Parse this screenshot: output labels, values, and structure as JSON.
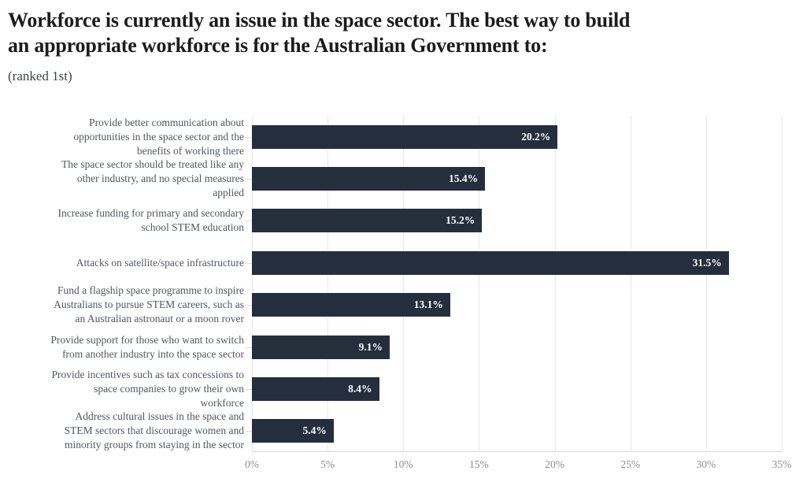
{
  "header": {
    "title": "Workforce is currently an issue in the space sector. The best way to build\nan appropriate workforce is for the Australian Government to:",
    "subtitle": "(ranked 1st)"
  },
  "chart_data": {
    "type": "bar",
    "orientation": "horizontal",
    "title": "Workforce is currently an issue in the space sector. The best way to build an appropriate workforce is for the Australian Government to:",
    "subtitle": "(ranked 1st)",
    "categories": [
      "Provide better communication about\nopportunities in the space sector and the\nbenefits of working there",
      "The space sector should be treated like any\nother industry, and no special measures\napplied",
      "Increase funding for primary and secondary\nschool STEM education",
      "Attacks on satellite/space infrastructure",
      "Fund a flagship space programme to inspire\nAustralians to pursue STEM careers, such as\nan Australian astronaut or a moon rover",
      "Provide support for those who want to switch\nfrom another industry into the space sector",
      "Provide incentives such as tax concessions to\nspace companies to grow their own\nworkforce",
      "Address cultural issues in the space and\nSTEM sectors that discourage women and\nminority groups from staying in the sector"
    ],
    "values": [
      20.2,
      15.4,
      15.2,
      31.5,
      13.1,
      9.1,
      8.4,
      5.4
    ],
    "value_labels": [
      "20.2%",
      "15.4%",
      "15.2%",
      "31.5%",
      "13.1%",
      "9.1%",
      "8.4%",
      "5.4%"
    ],
    "x_ticks": [
      "0%",
      "5%",
      "10%",
      "15%",
      "20%",
      "25%",
      "30%",
      "35%"
    ],
    "xlim": [
      0,
      35
    ],
    "xlabel": "",
    "ylabel": "",
    "grid": true,
    "legend": false,
    "colors": {
      "bar": "#242e3d",
      "value_label": "#ffffff",
      "category_label": "#53575e",
      "tick_label": "#8e8e8e",
      "gridline": "#e8e8e8",
      "axis_line": "#d8d8d8",
      "title": "#1c1c1c",
      "background": "#ffffff"
    }
  }
}
